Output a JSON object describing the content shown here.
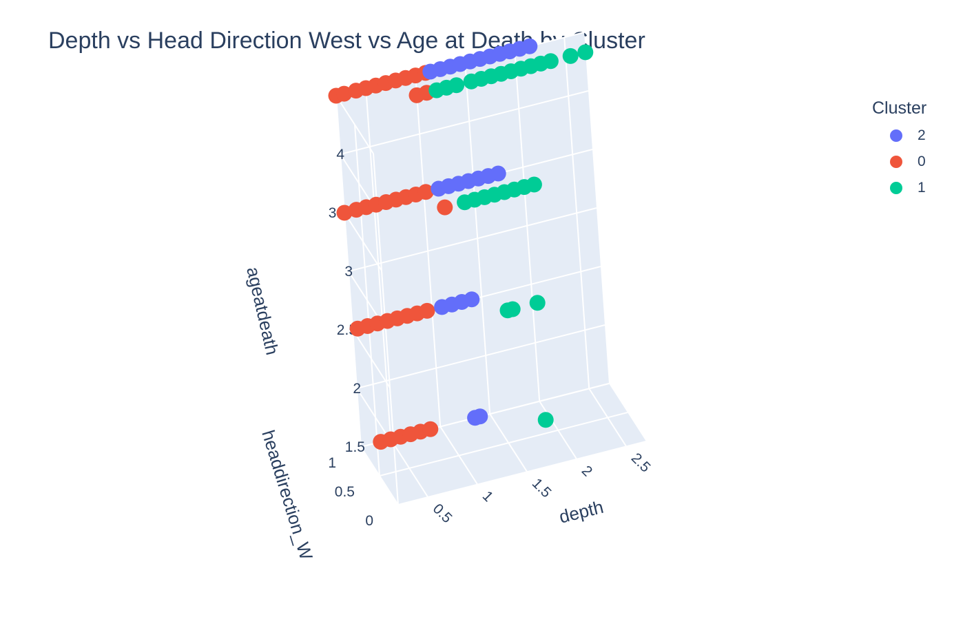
{
  "chart_data": {
    "type": "scatter3d",
    "title": "Depth vs Head Direction West vs Age at Death by Cluster",
    "axes": {
      "x": {
        "label": "depth",
        "ticks": [
          "0.5",
          "1",
          "1.5",
          "2",
          "2.5"
        ],
        "range": [
          0.2,
          2.7
        ]
      },
      "y": {
        "label": "headdirection_W",
        "ticks": [
          "0",
          "0.5",
          "1"
        ],
        "range": [
          0,
          1
        ]
      },
      "z": {
        "label": "ageatdeath",
        "ticks": [
          "1.5",
          "2",
          "2.5",
          "3",
          "3.5",
          "4"
        ],
        "range": [
          1,
          4
        ]
      }
    },
    "legend": {
      "title": "Cluster",
      "placement": "top-right"
    },
    "colors": {
      "cluster_2": "#636efa",
      "cluster_0": "#EF553B",
      "cluster_1": "#00cc96"
    },
    "series": [
      {
        "name": "2",
        "color": "#636efa",
        "points": [
          {
            "depth": 1.15,
            "hd": 1,
            "age": 4
          },
          {
            "depth": 1.25,
            "hd": 1,
            "age": 4
          },
          {
            "depth": 1.35,
            "hd": 1,
            "age": 4
          },
          {
            "depth": 1.45,
            "hd": 1,
            "age": 4
          },
          {
            "depth": 1.55,
            "hd": 1,
            "age": 4
          },
          {
            "depth": 1.65,
            "hd": 1,
            "age": 4
          },
          {
            "depth": 1.75,
            "hd": 1,
            "age": 4
          },
          {
            "depth": 1.85,
            "hd": 1,
            "age": 4
          },
          {
            "depth": 1.95,
            "hd": 1,
            "age": 4
          },
          {
            "depth": 2.05,
            "hd": 1,
            "age": 4
          },
          {
            "depth": 2.15,
            "hd": 1,
            "age": 4
          },
          {
            "depth": 1.15,
            "hd": 1,
            "age": 3
          },
          {
            "depth": 1.25,
            "hd": 1,
            "age": 3
          },
          {
            "depth": 1.35,
            "hd": 1,
            "age": 3
          },
          {
            "depth": 1.45,
            "hd": 1,
            "age": 3
          },
          {
            "depth": 1.55,
            "hd": 1,
            "age": 3
          },
          {
            "depth": 1.65,
            "hd": 1,
            "age": 3
          },
          {
            "depth": 1.75,
            "hd": 1,
            "age": 3
          },
          {
            "depth": 1.1,
            "hd": 1,
            "age": 2
          },
          {
            "depth": 1.2,
            "hd": 1,
            "age": 2
          },
          {
            "depth": 1.3,
            "hd": 1,
            "age": 2
          },
          {
            "depth": 1.4,
            "hd": 1,
            "age": 2
          },
          {
            "depth": 1.35,
            "hd": 1,
            "age": 1
          },
          {
            "depth": 1.4,
            "hd": 1,
            "age": 1
          }
        ]
      },
      {
        "name": "0",
        "color": "#EF553B",
        "points": [
          {
            "depth": 0.2,
            "hd": 1,
            "age": 4
          },
          {
            "depth": 0.28,
            "hd": 1,
            "age": 4
          },
          {
            "depth": 0.4,
            "hd": 1,
            "age": 4
          },
          {
            "depth": 0.5,
            "hd": 1,
            "age": 4
          },
          {
            "depth": 0.6,
            "hd": 1,
            "age": 4
          },
          {
            "depth": 0.7,
            "hd": 1,
            "age": 4
          },
          {
            "depth": 0.8,
            "hd": 1,
            "age": 4
          },
          {
            "depth": 0.9,
            "hd": 1,
            "age": 4
          },
          {
            "depth": 1.0,
            "hd": 1,
            "age": 4
          },
          {
            "depth": 1.1,
            "hd": 1,
            "age": 4
          },
          {
            "depth": 0.9,
            "hd": 0.7,
            "age": 4
          },
          {
            "depth": 1.0,
            "hd": 0.7,
            "age": 4
          },
          {
            "depth": 0.2,
            "hd": 1,
            "age": 3
          },
          {
            "depth": 0.32,
            "hd": 1,
            "age": 3
          },
          {
            "depth": 0.42,
            "hd": 1,
            "age": 3
          },
          {
            "depth": 0.52,
            "hd": 1,
            "age": 3
          },
          {
            "depth": 0.62,
            "hd": 1,
            "age": 3
          },
          {
            "depth": 0.72,
            "hd": 1,
            "age": 3
          },
          {
            "depth": 0.82,
            "hd": 1,
            "age": 3
          },
          {
            "depth": 0.92,
            "hd": 1,
            "age": 3
          },
          {
            "depth": 1.02,
            "hd": 1,
            "age": 3
          },
          {
            "depth": 1.1,
            "hd": 0.7,
            "age": 3
          },
          {
            "depth": 0.25,
            "hd": 1,
            "age": 2
          },
          {
            "depth": 0.35,
            "hd": 1,
            "age": 2
          },
          {
            "depth": 0.45,
            "hd": 1,
            "age": 2
          },
          {
            "depth": 0.55,
            "hd": 1,
            "age": 2
          },
          {
            "depth": 0.65,
            "hd": 1,
            "age": 2
          },
          {
            "depth": 0.75,
            "hd": 1,
            "age": 2
          },
          {
            "depth": 0.85,
            "hd": 1,
            "age": 2
          },
          {
            "depth": 0.95,
            "hd": 1,
            "age": 2
          },
          {
            "depth": 0.4,
            "hd": 1,
            "age": 1
          },
          {
            "depth": 0.5,
            "hd": 1,
            "age": 1
          },
          {
            "depth": 0.6,
            "hd": 1,
            "age": 1
          },
          {
            "depth": 0.7,
            "hd": 1,
            "age": 1
          },
          {
            "depth": 0.8,
            "hd": 1,
            "age": 1
          },
          {
            "depth": 0.9,
            "hd": 1,
            "age": 1
          }
        ]
      },
      {
        "name": "1",
        "color": "#00cc96",
        "points": [
          {
            "depth": 1.1,
            "hd": 0.7,
            "age": 4
          },
          {
            "depth": 1.2,
            "hd": 0.7,
            "age": 4
          },
          {
            "depth": 1.3,
            "hd": 0.7,
            "age": 4
          },
          {
            "depth": 1.45,
            "hd": 0.7,
            "age": 4
          },
          {
            "depth": 1.55,
            "hd": 0.7,
            "age": 4
          },
          {
            "depth": 1.65,
            "hd": 0.7,
            "age": 4
          },
          {
            "depth": 1.75,
            "hd": 0.7,
            "age": 4
          },
          {
            "depth": 1.85,
            "hd": 0.7,
            "age": 4
          },
          {
            "depth": 1.95,
            "hd": 0.7,
            "age": 4
          },
          {
            "depth": 2.05,
            "hd": 0.7,
            "age": 4
          },
          {
            "depth": 2.15,
            "hd": 0.7,
            "age": 4
          },
          {
            "depth": 2.25,
            "hd": 0.7,
            "age": 4
          },
          {
            "depth": 2.45,
            "hd": 0.7,
            "age": 4
          },
          {
            "depth": 2.6,
            "hd": 0.7,
            "age": 4
          },
          {
            "depth": 1.3,
            "hd": 0.7,
            "age": 3
          },
          {
            "depth": 1.4,
            "hd": 0.7,
            "age": 3
          },
          {
            "depth": 1.5,
            "hd": 0.7,
            "age": 3
          },
          {
            "depth": 1.6,
            "hd": 0.7,
            "age": 3
          },
          {
            "depth": 1.7,
            "hd": 0.7,
            "age": 3
          },
          {
            "depth": 1.8,
            "hd": 0.7,
            "age": 3
          },
          {
            "depth": 1.9,
            "hd": 0.7,
            "age": 3
          },
          {
            "depth": 2.0,
            "hd": 0.7,
            "age": 3
          },
          {
            "depth": 1.65,
            "hd": 0.7,
            "age": 2
          },
          {
            "depth": 1.7,
            "hd": 0.7,
            "age": 2
          },
          {
            "depth": 1.95,
            "hd": 0.7,
            "age": 2
          },
          {
            "depth": 1.95,
            "hd": 0.7,
            "age": 1
          }
        ]
      }
    ]
  }
}
